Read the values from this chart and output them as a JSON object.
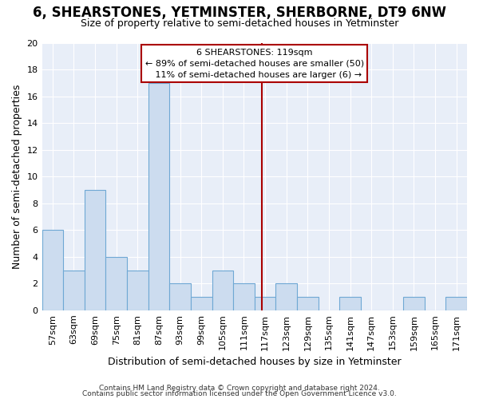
{
  "title": "6, SHEARSTONES, YETMINSTER, SHERBORNE, DT9 6NW",
  "subtitle": "Size of property relative to semi-detached houses in Yetminster",
  "xlabel": "Distribution of semi-detached houses by size in Yetminster",
  "ylabel": "Number of semi-detached properties",
  "footer_line1": "Contains HM Land Registry data © Crown copyright and database right 2024.",
  "footer_line2": "Contains public sector information licensed under the Open Government Licence v3.0.",
  "bins": [
    57,
    63,
    69,
    75,
    81,
    87,
    93,
    99,
    105,
    111,
    117,
    123,
    129,
    135,
    141,
    147,
    153,
    159,
    165,
    171,
    177
  ],
  "counts": [
    6,
    3,
    9,
    4,
    3,
    17,
    2,
    1,
    3,
    2,
    1,
    2,
    1,
    0,
    1,
    0,
    0,
    1,
    0,
    1
  ],
  "property_size": 119,
  "property_label": "6 SHEARSTONES: 119sqm",
  "pct_smaller": 89,
  "n_smaller": 50,
  "pct_larger": 11,
  "n_larger": 6,
  "bar_color": "#ccdcef",
  "bar_edge_color": "#6fa8d4",
  "vline_color": "#aa0000",
  "background_color": "#ffffff",
  "plot_bg_color": "#e8eef8",
  "box_edge_color": "#aa0000",
  "box_face_color": "#ffffff",
  "grid_color": "#ffffff",
  "ylim": [
    0,
    20
  ],
  "yticks": [
    0,
    2,
    4,
    6,
    8,
    10,
    12,
    14,
    16,
    18,
    20
  ],
  "title_fontsize": 12,
  "subtitle_fontsize": 9,
  "tick_fontsize": 8,
  "ylabel_fontsize": 9,
  "xlabel_fontsize": 9,
  "footer_fontsize": 6.5,
  "annot_fontsize": 8
}
